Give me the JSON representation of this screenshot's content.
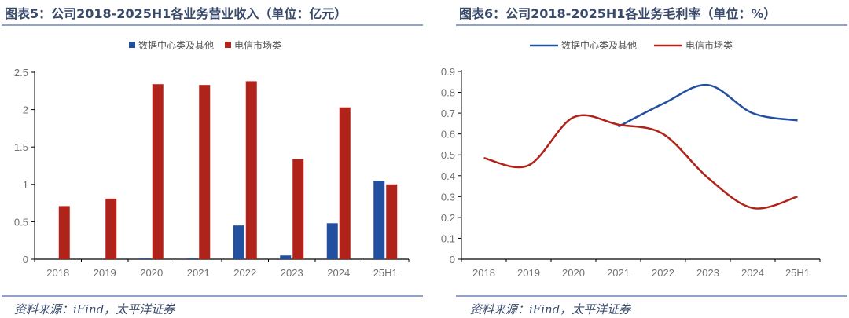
{
  "left": {
    "title": "图表5：公司2018-2025H1各业务营业收入（单位：亿元）",
    "source": "资料来源：iFind，太平洋证券"
  },
  "right": {
    "title": "图表6：公司2018-2025H1各业务毛利率（单位：%）",
    "source": "资料来源：iFind，太平洋证券"
  },
  "chart_data": [
    {
      "type": "bar",
      "categories": [
        "2018",
        "2019",
        "2020",
        "2021",
        "2022",
        "2023",
        "2024",
        "25H1"
      ],
      "series": [
        {
          "name": "数据中心类及其他",
          "color": "#23509e",
          "values": [
            null,
            null,
            0.01,
            0.01,
            0.45,
            0.05,
            0.48,
            1.05
          ]
        },
        {
          "name": "电信市场类",
          "color": "#b0231a",
          "values": [
            0.71,
            0.81,
            2.34,
            2.33,
            2.38,
            1.34,
            2.03,
            1.0
          ]
        }
      ],
      "ylim": [
        0,
        2.5
      ],
      "yticks": [
        "0",
        "0.5",
        "1",
        "1.5",
        "2",
        "2.5"
      ],
      "legend": "top",
      "grid": false
    },
    {
      "type": "line",
      "categories": [
        "2018",
        "2019",
        "2020",
        "2021",
        "2022",
        "2023",
        "2024",
        "25H1"
      ],
      "series": [
        {
          "name": "数据中心类及其他",
          "color": "#23509e",
          "values": [
            null,
            null,
            null,
            0.635,
            0.745,
            0.835,
            0.7,
            0.665
          ]
        },
        {
          "name": "电信市场类",
          "color": "#b0231a",
          "values": [
            0.485,
            0.45,
            0.68,
            0.645,
            0.6,
            0.39,
            0.245,
            0.3
          ]
        }
      ],
      "ylim": [
        0,
        0.9
      ],
      "yticks": [
        "0",
        "0.1",
        "0.2",
        "0.3",
        "0.4",
        "0.5",
        "0.6",
        "0.7",
        "0.8",
        "0.9"
      ],
      "legend": "top",
      "grid": false,
      "smooth": true
    }
  ]
}
